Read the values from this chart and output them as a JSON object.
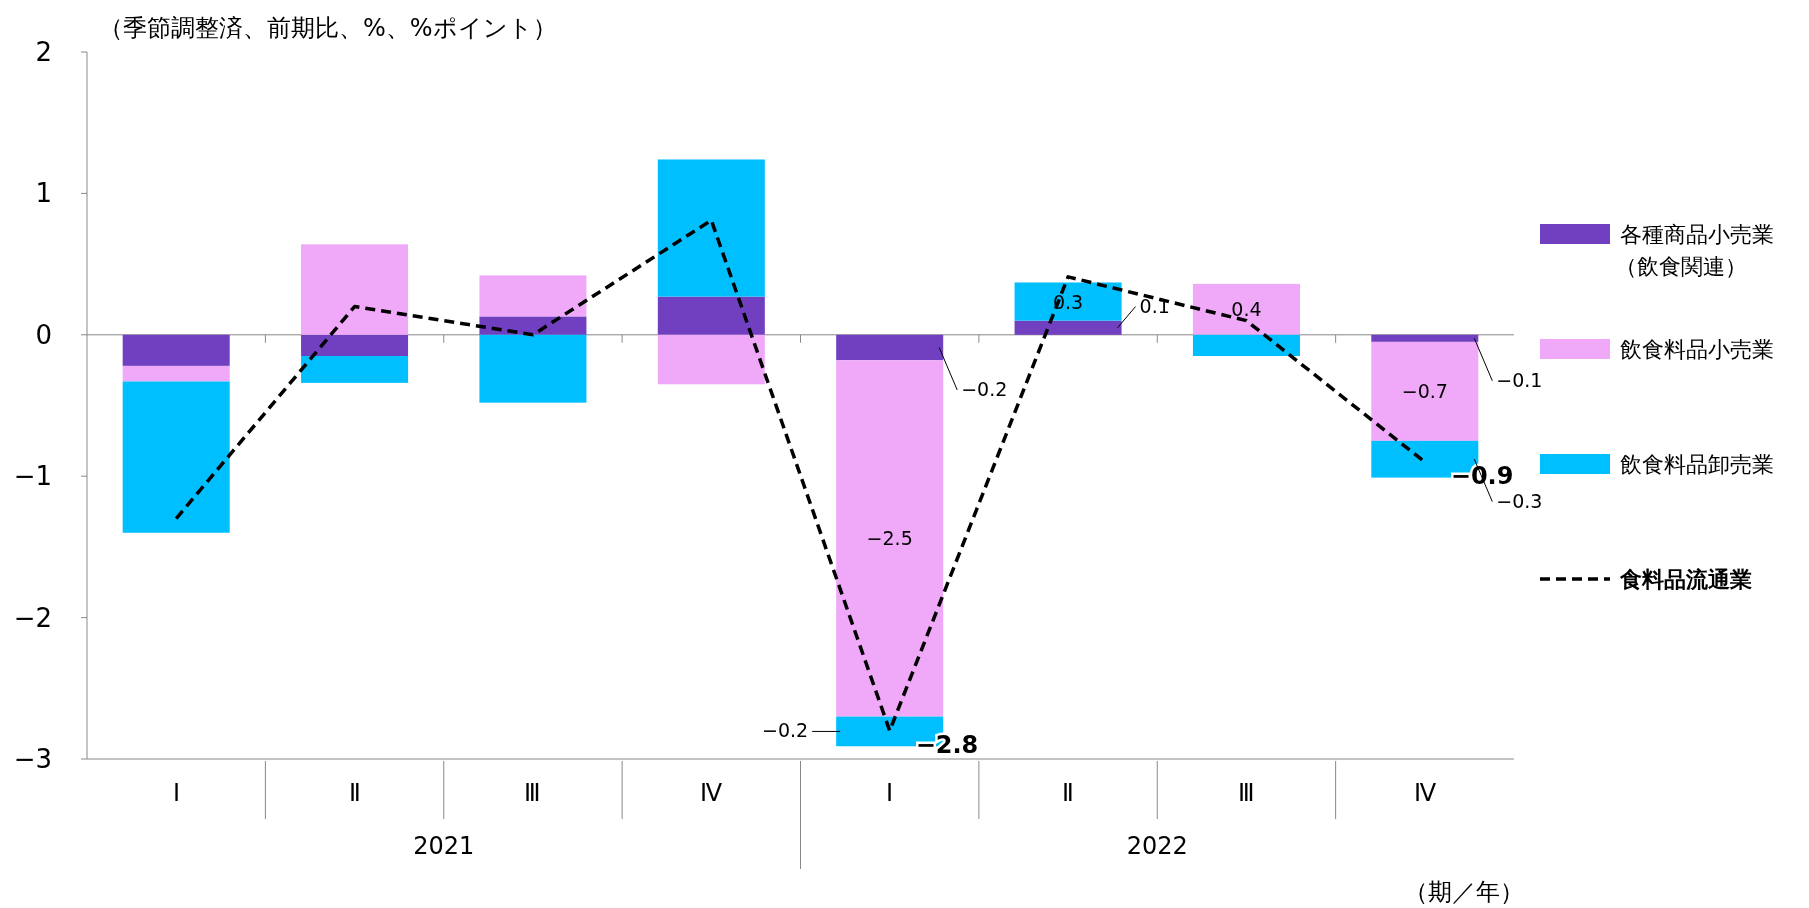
{
  "chart_data": {
    "type": "bar",
    "stacked": true,
    "ylabel": "（季節調整済、前期比、%、%ポイント）",
    "xlabel": "（期／年）",
    "categories": [
      "Ⅰ",
      "Ⅱ",
      "Ⅲ",
      "Ⅳ",
      "Ⅰ",
      "Ⅱ",
      "Ⅲ",
      "Ⅳ"
    ],
    "annotations": [
      "2021",
      "2022"
    ],
    "ylim": [
      -3,
      2
    ],
    "yticks": [
      -3,
      -2,
      -1,
      0,
      1,
      2
    ],
    "grid": false,
    "legend": "right",
    "ref_lines": [
      {
        "axis": "y",
        "value": 0,
        "color": "#888888"
      }
    ],
    "series": [
      {
        "name": "各種商品小売業（飲食関連）",
        "color": "#7040c0",
        "values": [
          -0.22,
          -0.15,
          0.13,
          0.27,
          -0.18,
          0.1,
          0,
          -0.05
        ],
        "value_labels": [
          null,
          null,
          null,
          null,
          "−0.2",
          "0.1",
          null,
          "−0.1"
        ]
      },
      {
        "name": "飲食料品小売業",
        "color": "#f0a8f8",
        "values": [
          -0.11,
          0.64,
          0.29,
          -0.35,
          -2.52,
          0,
          0.36,
          -0.7
        ],
        "value_labels": [
          null,
          null,
          null,
          null,
          "−2.5",
          null,
          "0.4",
          "−0.7"
        ]
      },
      {
        "name": "飲食料品卸売業",
        "color": "#00bfff",
        "values": [
          -1.07,
          -0.19,
          -0.48,
          0.97,
          -0.21,
          0.27,
          -0.15,
          -0.26
        ],
        "value_labels": [
          null,
          null,
          null,
          null,
          "−0.2",
          "0.3",
          null,
          "−0.3"
        ]
      },
      {
        "name": "食料品流通業",
        "type": "line",
        "color": "#000000",
        "line_style": "dashed",
        "marker": "none",
        "values": [
          -1.3,
          0.2,
          0.0,
          0.81,
          -2.8,
          0.41,
          0.1,
          -0.9
        ],
        "value_labels": [
          null,
          null,
          null,
          null,
          "−2.8",
          null,
          null,
          "−0.9"
        ]
      }
    ]
  }
}
